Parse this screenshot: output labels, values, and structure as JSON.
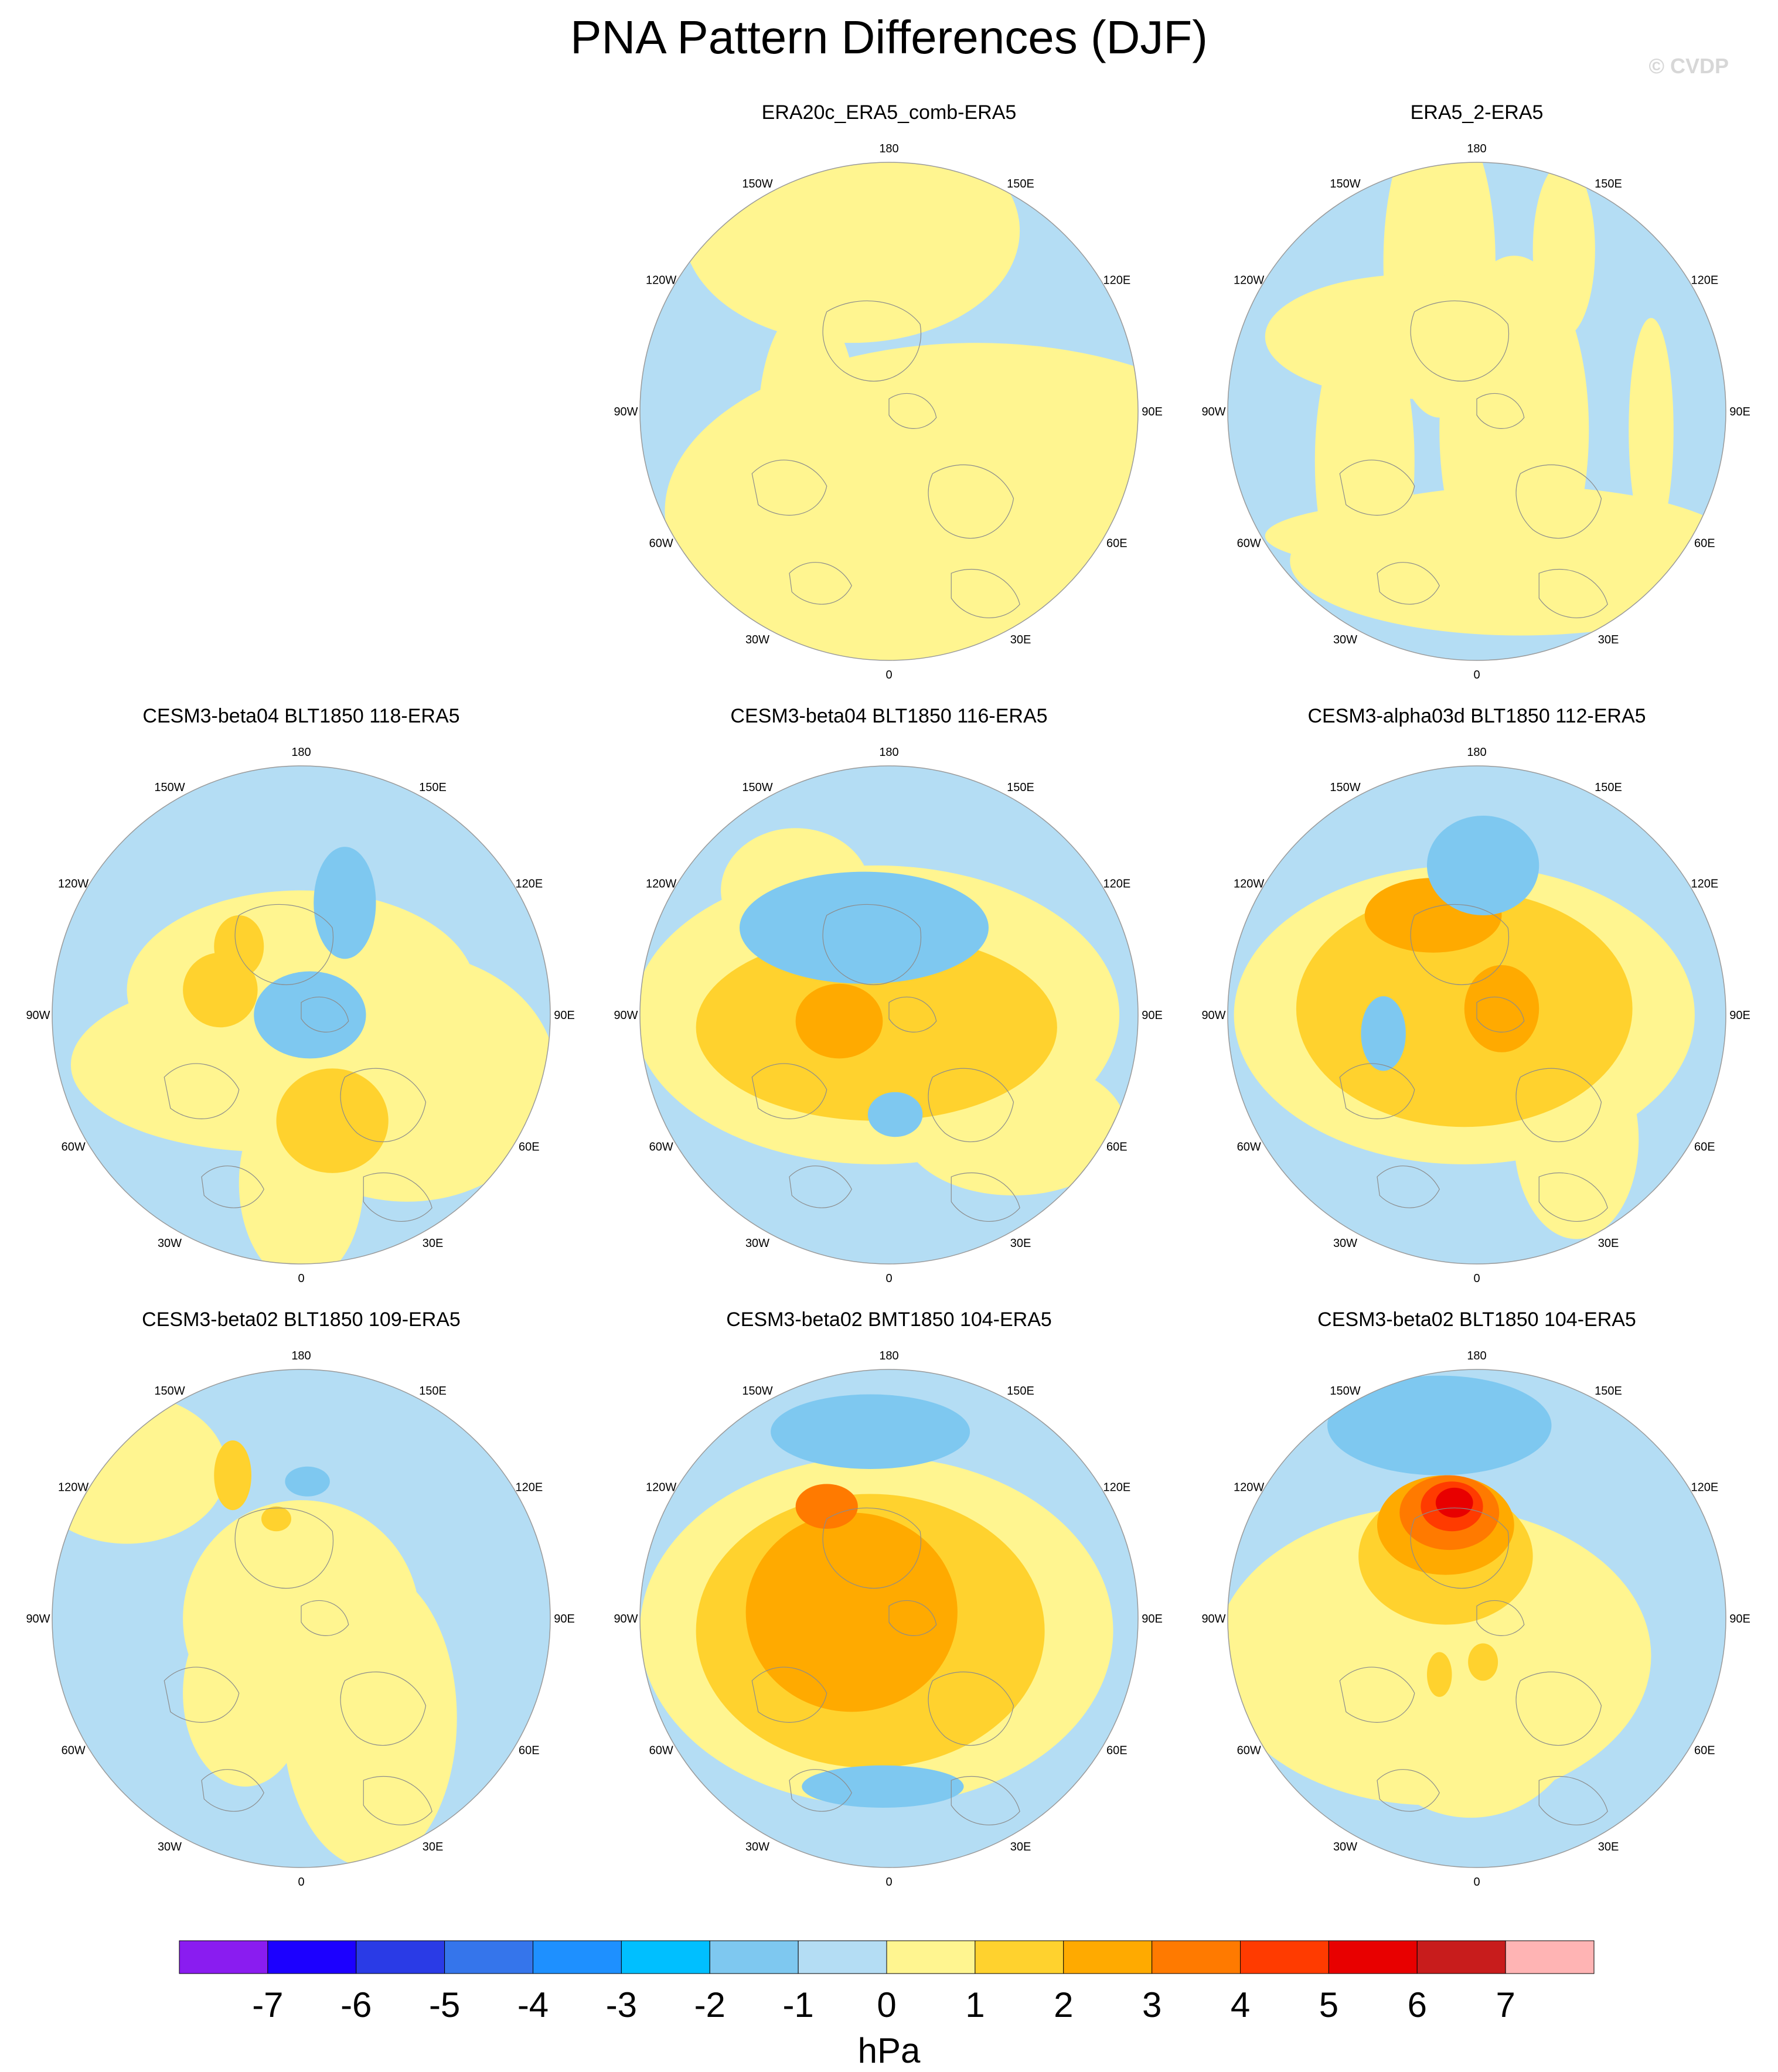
{
  "figure": {
    "title": "PNA Pattern Differences (DJF)",
    "credit": "© CVDP"
  },
  "longitude_labels": [
    "180",
    "150E",
    "120E",
    "90E",
    "60E",
    "30E",
    "0",
    "30W",
    "60W",
    "90W",
    "120W",
    "150W"
  ],
  "colorbar": {
    "unit": "hPa",
    "ticks": [
      "-7",
      "-6",
      "-5",
      "-4",
      "-3",
      "-2",
      "-1",
      "0",
      "1",
      "2",
      "3",
      "4",
      "5",
      "6",
      "7"
    ],
    "colors": [
      "#8a1cf0",
      "#1c00ff",
      "#2a3be6",
      "#3575eb",
      "#1e90ff",
      "#00bfff",
      "#7ec8f0",
      "#b4ddf4",
      "#fff590",
      "#ffd22e",
      "#ffaa00",
      "#ff7a00",
      "#ff3b00",
      "#e80000",
      "#c81c1c",
      "#ffb4b4"
    ]
  },
  "colors": {
    "land_outline": "#8c8c8c",
    "map_border": "#9a9a9a"
  },
  "panels": [
    {
      "id": "p1",
      "title": "ERA20c_ERA5_comb-ERA5",
      "base": "#b4ddf4",
      "blobs": [
        [
          135,
          210,
          40,
          95,
          "#fff590"
        ],
        [
          200,
          190,
          95,
          35,
          "#fff590"
        ],
        [
          300,
          200,
          110,
          25,
          "#fff590"
        ],
        [
          170,
          55,
          135,
          90,
          "#fff590"
        ],
        [
          270,
          280,
          250,
          135,
          "#fff590"
        ],
        [
          325,
          255,
          105,
          70,
          "#fff590"
        ]
      ]
    },
    {
      "id": "p2",
      "title": "ERA5_2-ERA5",
      "base": "#b4ddf4",
      "blobs": [
        [
          170,
          80,
          45,
          125,
          "#fff590"
        ],
        [
          150,
          140,
          120,
          50,
          "#fff590"
        ],
        [
          110,
          240,
          40,
          120,
          "#fff590"
        ],
        [
          200,
          300,
          170,
          30,
          "#fff590"
        ],
        [
          235,
          320,
          185,
          60,
          "#fff590"
        ],
        [
          230,
          215,
          60,
          140,
          "#fff590"
        ],
        [
          340,
          215,
          18,
          90,
          "#fff590"
        ],
        [
          270,
          70,
          25,
          70,
          "#fff590"
        ],
        [
          240,
          430,
          160,
          25,
          "#fff590"
        ]
      ]
    },
    {
      "id": "p3",
      "title": "CESM3-beta04 BLT1850 118-ERA5",
      "base": "#b4ddf4",
      "blobs": [
        [
          175,
          240,
          160,
          70,
          "#fff590"
        ],
        [
          200,
          180,
          140,
          80,
          "#fff590"
        ],
        [
          285,
          250,
          120,
          100,
          "#fff590"
        ],
        [
          200,
          335,
          50,
          80,
          "#fff590"
        ],
        [
          135,
          180,
          30,
          30,
          "#ffd22e"
        ],
        [
          150,
          145,
          20,
          25,
          "#ffd22e"
        ],
        [
          225,
          285,
          45,
          42,
          "#ffd22e"
        ],
        [
          235,
          110,
          25,
          45,
          "#7ec8f0"
        ],
        [
          207,
          200,
          45,
          35,
          "#7ec8f0"
        ]
      ]
    },
    {
      "id": "p4",
      "title": "CESM3-beta04 BLT1850 116-ERA5",
      "base": "#b4ddf4",
      "blobs": [
        [
          190,
          200,
          195,
          120,
          "#fff590"
        ],
        [
          125,
          100,
          60,
          50,
          "#fff590"
        ],
        [
          300,
          290,
          90,
          55,
          "#fff590"
        ],
        [
          190,
          210,
          145,
          75,
          "#ffd22e"
        ],
        [
          160,
          205,
          35,
          30,
          "#ffaa00"
        ],
        [
          180,
          130,
          100,
          45,
          "#7ec8f0"
        ],
        [
          205,
          280,
          22,
          18,
          "#7ec8f0"
        ]
      ]
    },
    {
      "id": "p5",
      "title": "CESM3-alpha03d BLT1850 112-ERA5",
      "base": "#b4ddf4",
      "blobs": [
        [
          190,
          200,
          185,
          120,
          "#fff590"
        ],
        [
          280,
          300,
          50,
          80,
          "#fff590"
        ],
        [
          190,
          195,
          135,
          95,
          "#ffd22e"
        ],
        [
          165,
          120,
          55,
          30,
          "#ffaa00"
        ],
        [
          220,
          195,
          30,
          35,
          "#ffaa00"
        ],
        [
          205,
          80,
          45,
          40,
          "#7ec8f0"
        ],
        [
          125,
          215,
          18,
          30,
          "#7ec8f0"
        ]
      ]
    },
    {
      "id": "p6",
      "title": "CESM3-beta02 BLT1850 109-ERA5",
      "base": "#b4ddf4",
      "blobs": [
        [
          60,
          80,
          80,
          60,
          "#fff590"
        ],
        [
          200,
          200,
          95,
          95,
          "#fff590"
        ],
        [
          255,
          280,
          70,
          120,
          "#fff590"
        ],
        [
          155,
          260,
          50,
          75,
          "#fff590"
        ],
        [
          145,
          85,
          15,
          28,
          "#ffd22e"
        ],
        [
          180,
          120,
          12,
          10,
          "#ffd22e"
        ],
        [
          205,
          90,
          18,
          12,
          "#7ec8f0"
        ]
      ]
    },
    {
      "id": "p7",
      "title": "CESM3-beta02 BMT1850 104-ERA5",
      "base": "#b4ddf4",
      "blobs": [
        [
          190,
          210,
          190,
          140,
          "#fff590"
        ],
        [
          185,
          210,
          140,
          110,
          "#ffd22e"
        ],
        [
          170,
          195,
          85,
          80,
          "#ffaa00"
        ],
        [
          150,
          110,
          25,
          18,
          "#ff7a00"
        ],
        [
          185,
          50,
          80,
          30,
          "#7ec8f0"
        ],
        [
          195,
          335,
          65,
          17,
          "#7ec8f0"
        ]
      ]
    },
    {
      "id": "p8",
      "title": "CESM3-beta02 BLT1850 104-ERA5",
      "base": "#b4ddf4",
      "blobs": [
        [
          165,
          230,
          175,
          120,
          "#fff590"
        ],
        [
          195,
          270,
          90,
          90,
          "#fff590"
        ],
        [
          170,
          45,
          90,
          40,
          "#7ec8f0"
        ],
        [
          175,
          150,
          70,
          55,
          "#ffd22e"
        ],
        [
          175,
          125,
          55,
          40,
          "#ffaa00"
        ],
        [
          178,
          115,
          40,
          30,
          "#ff7a00"
        ],
        [
          180,
          110,
          25,
          20,
          "#ff3b00"
        ],
        [
          182,
          107,
          15,
          12,
          "#e80000"
        ],
        [
          205,
          235,
          12,
          15,
          "#ffd22e"
        ],
        [
          170,
          245,
          10,
          18,
          "#ffd22e"
        ]
      ]
    }
  ]
}
